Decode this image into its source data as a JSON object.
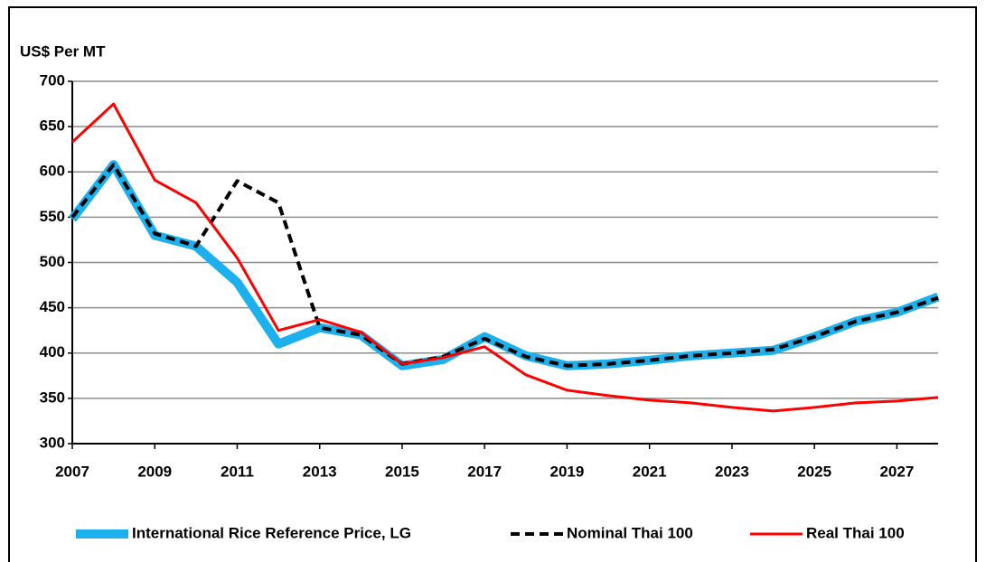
{
  "chart_data": {
    "type": "line",
    "y_label": "US$ Per MT",
    "x": [
      2007,
      2008,
      2009,
      2010,
      2011,
      2012,
      2013,
      2014,
      2015,
      2016,
      2017,
      2018,
      2019,
      2020,
      2021,
      2022,
      2023,
      2024,
      2025,
      2026,
      2027,
      2028
    ],
    "series": [
      {
        "name": "International Rice Reference Price, LG",
        "color": "#1cb0ec",
        "linewidth": 10,
        "style": "solid",
        "values": [
          548,
          608,
          530,
          518,
          478,
          410,
          428,
          420,
          386,
          393,
          418,
          397,
          386,
          388,
          392,
          397,
          400,
          403,
          418,
          435,
          445,
          462
        ]
      },
      {
        "name": "Nominal Thai 100",
        "color": "#000000",
        "linewidth": 4,
        "style": "dashed",
        "values": [
          550,
          608,
          532,
          518,
          590,
          566,
          428,
          420,
          388,
          396,
          416,
          396,
          386,
          388,
          392,
          397,
          400,
          404,
          418,
          435,
          445,
          461
        ]
      },
      {
        "name": "Real Thai 100",
        "color": "#ff0000",
        "linewidth": 3,
        "style": "solid",
        "values": [
          633,
          675,
          591,
          566,
          505,
          425,
          437,
          423,
          388,
          395,
          407,
          376,
          359,
          353,
          348,
          345,
          340,
          336,
          340,
          345,
          347,
          351
        ]
      }
    ],
    "xlim": [
      2007,
      2028
    ],
    "xticks": [
      2007,
      2009,
      2011,
      2013,
      2015,
      2017,
      2019,
      2021,
      2023,
      2025,
      2027
    ],
    "ylim": [
      300,
      700
    ],
    "yticks": [
      300,
      350,
      400,
      450,
      500,
      550,
      600,
      650,
      700
    ],
    "grid": true
  }
}
